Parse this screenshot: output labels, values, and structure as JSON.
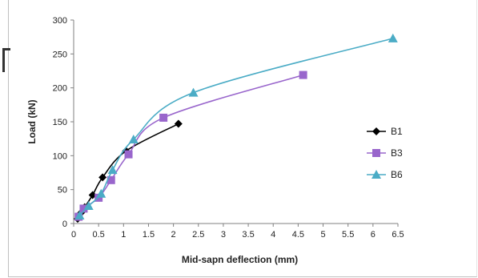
{
  "chart_data": {
    "type": "line",
    "title": "",
    "xlabel": "Mid-sapn deflection  (mm)",
    "ylabel": "Load (kN)",
    "xlim": [
      0,
      6.5
    ],
    "ylim": [
      0,
      300
    ],
    "x_ticks": [
      "0",
      "0.5",
      "1",
      "1.5",
      "2",
      "2.5",
      "3",
      "3.5",
      "4",
      "4.5",
      "5",
      "5.5",
      "6",
      "6.5"
    ],
    "y_ticks": [
      "0",
      "50",
      "100",
      "150",
      "200",
      "250",
      "300"
    ],
    "grid": false,
    "legend_position": "right",
    "series": [
      {
        "name": "B1",
        "color": "#000000",
        "marker": "diamond",
        "points": [
          [
            0.08,
            7
          ],
          [
            0.15,
            16
          ],
          [
            0.22,
            24
          ],
          [
            0.38,
            42
          ],
          [
            0.58,
            68
          ],
          [
            1.05,
            107
          ],
          [
            2.1,
            147
          ]
        ]
      },
      {
        "name": "B3",
        "color": "#9966cc",
        "marker": "square",
        "points": [
          [
            0.1,
            10
          ],
          [
            0.2,
            22
          ],
          [
            0.5,
            38
          ],
          [
            0.75,
            64
          ],
          [
            1.1,
            102
          ],
          [
            1.8,
            156
          ],
          [
            4.6,
            219
          ]
        ]
      },
      {
        "name": "B6",
        "color": "#4bacc6",
        "marker": "triangle",
        "points": [
          [
            0.12,
            12
          ],
          [
            0.3,
            26
          ],
          [
            0.55,
            44
          ],
          [
            0.78,
            79
          ],
          [
            1.2,
            124
          ],
          [
            2.4,
            193
          ],
          [
            6.4,
            273
          ]
        ]
      }
    ]
  }
}
